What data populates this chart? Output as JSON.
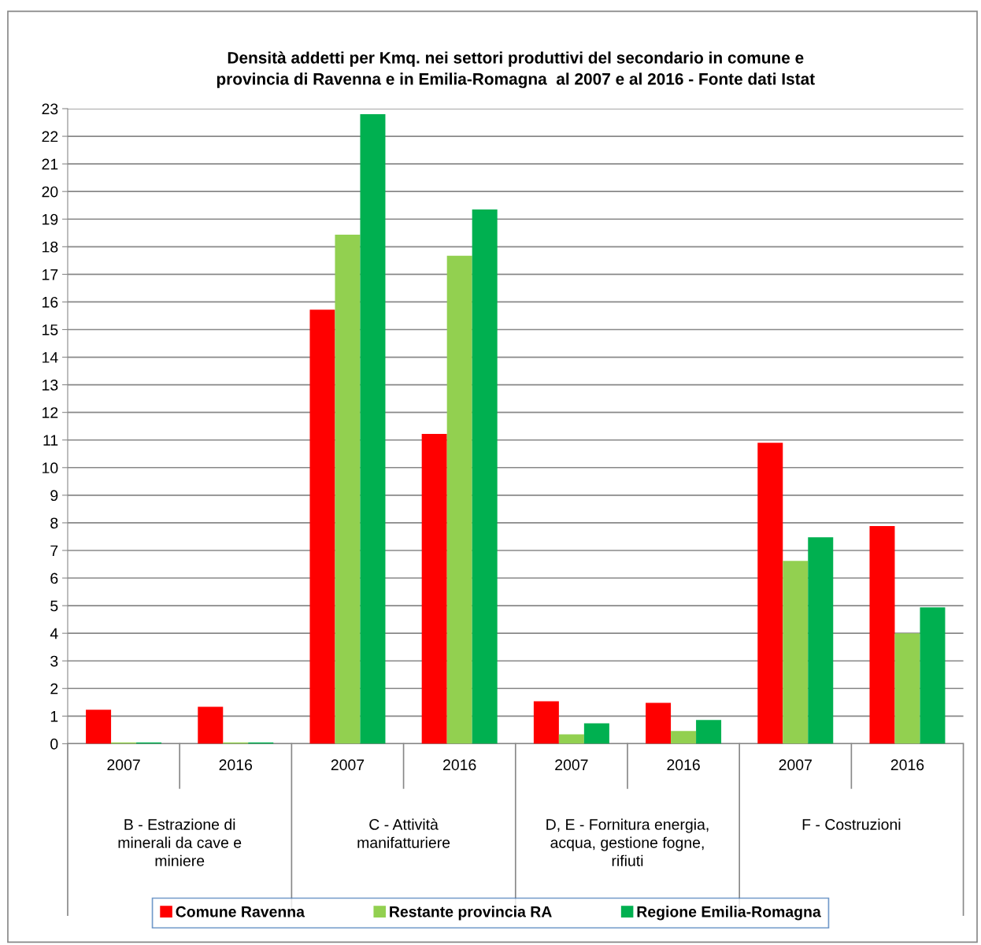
{
  "chart_data": {
    "type": "bar",
    "title": "Densità addetti per Kmq. nei settori produttivi del secondario in comune e\nprovincia di Ravenna e in Emilia-Romagna  al 2007 e al 2016 - Fonte dati Istat",
    "categories": [
      "2007",
      "2016",
      "2007",
      "2016",
      "2007",
      "2016",
      "2007",
      "2016"
    ],
    "annotations": [
      "B - Estrazione di\nminerali da cave e\nminiere",
      "C - Attività\nmanifatturiere",
      "D, E - Fornitura energia,\nacqua, gestione fogne,\nrifiuti",
      "F - Costruzioni"
    ],
    "series": [
      {
        "name": "Comune Ravenna",
        "color": "#ff0000",
        "values": [
          1.23,
          1.34,
          15.72,
          11.22,
          1.54,
          1.48,
          10.9,
          7.88
        ]
      },
      {
        "name": "Restante provincia RA",
        "color": "#92d050",
        "values": [
          0.05,
          0.05,
          18.44,
          17.67,
          0.34,
          0.46,
          6.62,
          4.0
        ]
      },
      {
        "name": "Regione Emilia-Romagna",
        "color": "#00b050",
        "values": [
          0.05,
          0.05,
          22.8,
          19.35,
          0.74,
          0.86,
          7.48,
          4.94
        ]
      }
    ],
    "ylim": [
      0,
      23
    ],
    "yticks": [
      0,
      1,
      2,
      3,
      4,
      5,
      6,
      7,
      8,
      9,
      10,
      11,
      12,
      13,
      14,
      15,
      16,
      17,
      18,
      19,
      20,
      21,
      22,
      23
    ],
    "grid": "y",
    "legend": "bottom"
  }
}
